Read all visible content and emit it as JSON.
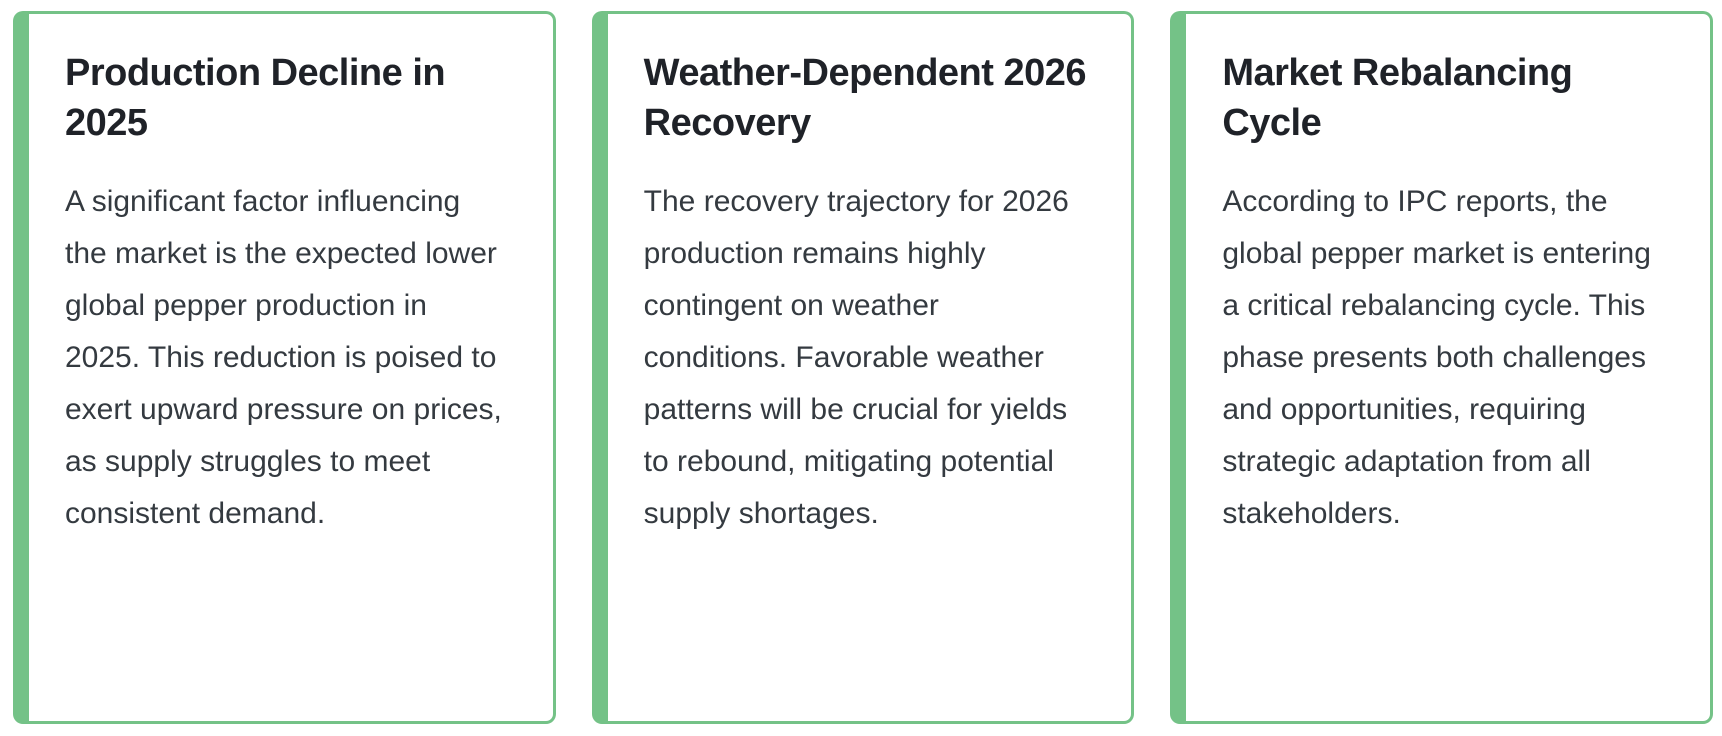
{
  "accent_color": "#74c287",
  "cards": [
    {
      "title": "Production Decline in 2025",
      "body": "A significant factor influencing the market is the expected lower global pepper production in 2025. This reduction is poised to exert upward pressure on prices, as supply struggles to meet consistent demand."
    },
    {
      "title": "Weather-Dependent 2026 Recovery",
      "body": "The recovery trajectory for 2026 production remains highly contingent on weather conditions. Favorable weather patterns will be crucial for yields to rebound, mitigating potential supply shortages."
    },
    {
      "title": "Market Rebalancing Cycle",
      "body": "According to IPC reports, the global pepper market is entering a critical rebalancing cycle. This phase presents both challenges and opportunities, requiring strategic adaptation from all stakeholders."
    }
  ]
}
